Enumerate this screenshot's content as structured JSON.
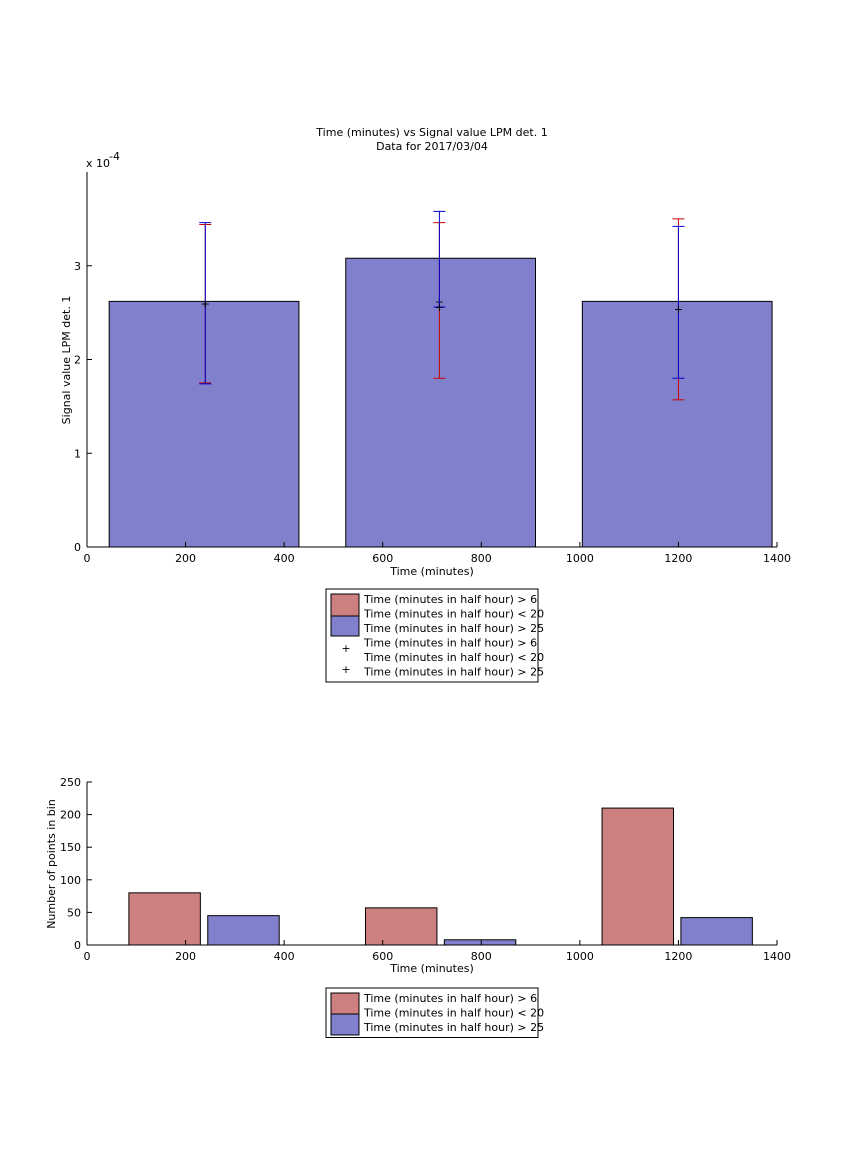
{
  "chart_data": [
    {
      "type": "bar",
      "title": "Time (minutes) vs Signal value LPM det. 1",
      "subtitle": "Data for 2017/03/04",
      "xlabel": "Time (minutes)",
      "ylabel": "Signal value LPM det. 1",
      "y_exponent_label": "x 10",
      "y_exponent_power": "-4",
      "xlim": [
        0,
        1400
      ],
      "ylim": [
        0,
        4.0
      ],
      "y_unit_multiplier": 0.0001,
      "x_ticks": [
        "0",
        "200",
        "400",
        "600",
        "800",
        "1000",
        "1200",
        "1400"
      ],
      "y_ticks": [
        "0",
        "1",
        "2",
        "3"
      ],
      "grid": false,
      "legend_placement": "below",
      "legend": [
        "Time (minutes in half hour) > 6",
        "Time (minutes in half hour) < 20",
        "Time (minutes in half hour) > 25",
        "Time (minutes in half hour) > 6",
        "Time (minutes in half hour) < 20",
        "Time (minutes in half hour) > 25"
      ],
      "bar_color": "#8080cc",
      "bars": [
        {
          "x_start": 45,
          "x_end": 430,
          "value": 2.62
        },
        {
          "x_start": 525,
          "x_end": 910,
          "value": 3.08
        },
        {
          "x_start": 1005,
          "x_end": 1390,
          "value": 2.62
        }
      ],
      "error_bars": [
        {
          "series": "red",
          "color": "#cc0000",
          "x": 240,
          "mean": 2.6,
          "low": 1.75,
          "high": 3.44
        },
        {
          "series": "blue",
          "color": "#0000cc",
          "x": 240,
          "mean": 2.6,
          "low": 1.74,
          "high": 3.46
        },
        {
          "series": "red",
          "color": "#cc0000",
          "x": 715,
          "mean": 2.62,
          "low": 1.8,
          "high": 3.46
        },
        {
          "series": "blue",
          "color": "#0000cc",
          "x": 715,
          "mean": 2.56,
          "low": 2.56,
          "high": 3.58
        },
        {
          "series": "red",
          "color": "#cc0000",
          "x": 1200,
          "mean": 2.54,
          "low": 1.57,
          "high": 3.5
        },
        {
          "series": "blue",
          "color": "#0000cc",
          "x": 1200,
          "mean": 2.54,
          "low": 1.8,
          "high": 3.42
        }
      ]
    },
    {
      "type": "bar",
      "xlabel": "Time (minutes)",
      "ylabel": "Number of points in bin",
      "xlim": [
        0,
        1400
      ],
      "ylim": [
        0,
        250
      ],
      "x_ticks": [
        "0",
        "200",
        "400",
        "600",
        "800",
        "1000",
        "1200",
        "1400"
      ],
      "y_ticks": [
        "0",
        "50",
        "100",
        "150",
        "200",
        "250"
      ],
      "grid": false,
      "legend_placement": "below",
      "legend": [
        "Time (minutes in half hour) > 6",
        "Time (minutes in half hour) < 20",
        "Time (minutes in half hour) > 25"
      ],
      "series": [
        {
          "color": "#cc8080",
          "bars": [
            {
              "x_start": 85,
              "x_end": 230,
              "value": 80
            },
            {
              "x_start": 565,
              "x_end": 710,
              "value": 57
            },
            {
              "x_start": 1045,
              "x_end": 1190,
              "value": 210
            }
          ]
        },
        {
          "color": "#8080cc",
          "bars": [
            {
              "x_start": 245,
              "x_end": 390,
              "value": 45
            },
            {
              "x_start": 725,
              "x_end": 870,
              "value": 8
            },
            {
              "x_start": 1205,
              "x_end": 1350,
              "value": 42
            }
          ]
        }
      ]
    }
  ]
}
